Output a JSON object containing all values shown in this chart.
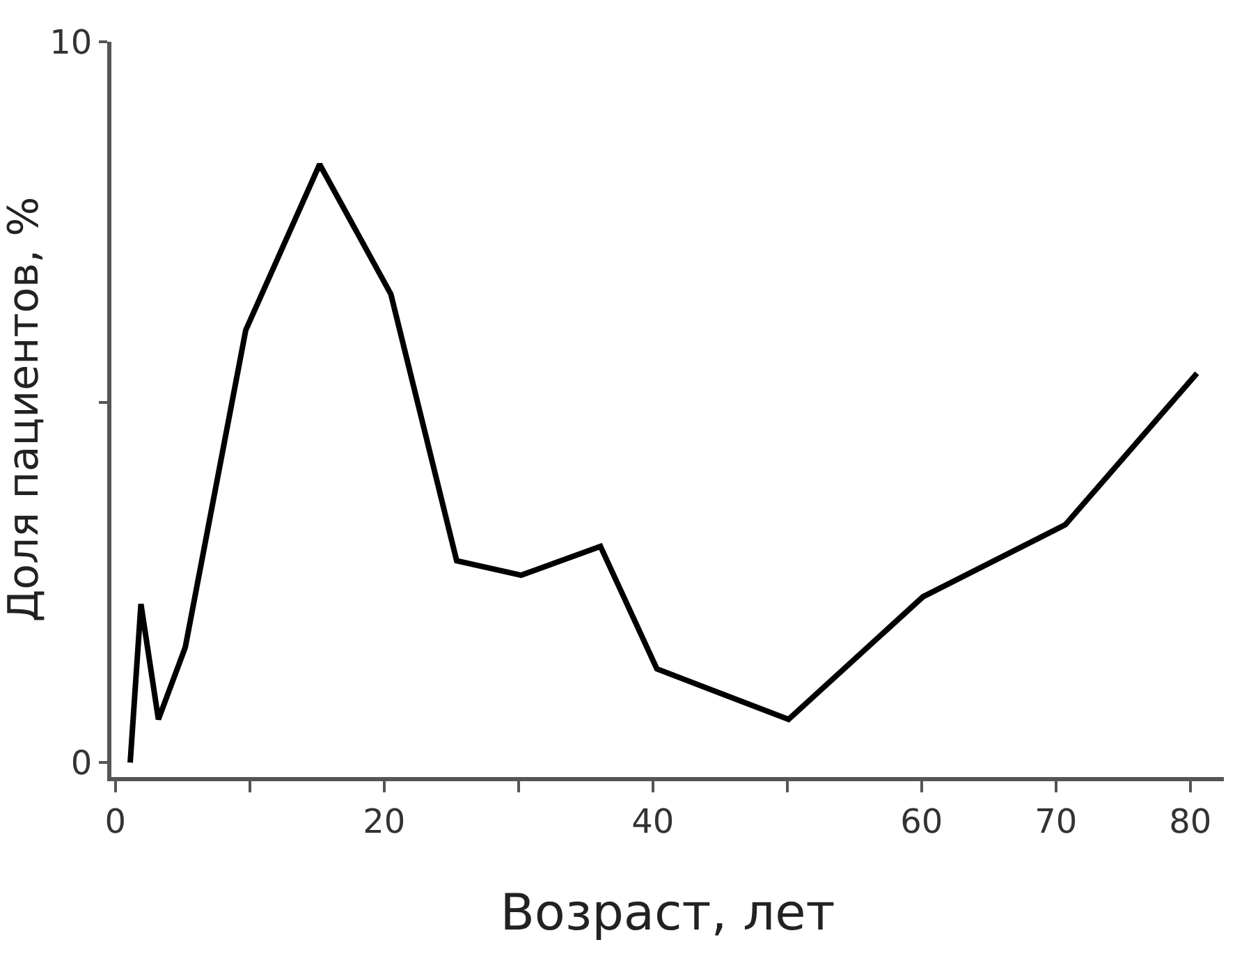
{
  "chart_data": {
    "type": "line",
    "xlabel": "Возраст, лет",
    "ylabel": "Доля пациентов, %",
    "x": [
      1.1,
      1.9,
      3.2,
      5.2,
      9.7,
      15.2,
      20.5,
      25.4,
      30.2,
      36.1,
      40.3,
      50.1,
      60.1,
      70.7,
      80.5
    ],
    "series": [
      {
        "color": "#000000",
        "values": [
          0,
          2.2,
          0.6,
          1.6,
          6.0,
          8.3,
          6.5,
          2.8,
          2.6,
          3.0,
          1.3,
          0.6,
          2.3,
          3.3,
          5.4
        ]
      }
    ],
    "xlim": [
      -0.3,
      82.5
    ],
    "xticks": [
      0,
      {
        "value": 10,
        "label": null
      },
      20,
      {
        "value": 30,
        "label": null
      },
      40,
      {
        "value": 50,
        "label": null
      },
      60,
      70,
      80
    ],
    "ylim": [
      -0.2,
      10
    ],
    "yticks": [
      0,
      {
        "value": 5,
        "label": null
      },
      10
    ],
    "marker": "none",
    "line_style": "solid"
  }
}
